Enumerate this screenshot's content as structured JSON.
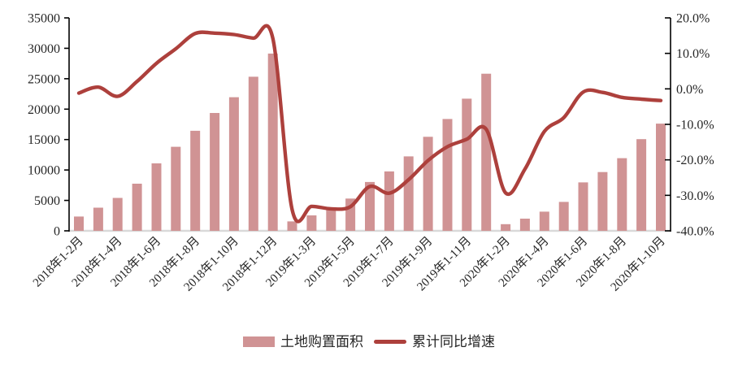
{
  "chart_data": {
    "type": "combo-bar-line",
    "title": "",
    "categories": [
      "2018年1-2月",
      "2018年1-3月",
      "2018年1-4月",
      "2018年1-5月",
      "2018年1-6月",
      "2018年1-7月",
      "2018年1-8月",
      "2018年1-9月",
      "2018年1-10月",
      "2018年1-11月",
      "2018年1-12月",
      "2019年1-2月",
      "2019年1-3月",
      "2019年1-4月",
      "2019年1-5月",
      "2019年1-6月",
      "2019年1-7月",
      "2019年1-8月",
      "2019年1-9月",
      "2019年1-10月",
      "2019年1-11月",
      "2019年1-12月",
      "2020年1-2月",
      "2020年1-3月",
      "2020年1-4月",
      "2020年1-5月",
      "2020年1-6月",
      "2020年1-7月",
      "2020年1-8月",
      "2020年1-9月",
      "2020年1-10月"
    ],
    "x_tick_labels_shown": [
      "2018年1-2月",
      "2018年1-4月",
      "2018年1-6月",
      "2018年1-8月",
      "2018年1-10月",
      "2018年1-12月",
      "2019年1-3月",
      "2019年1-5月",
      "2019年1-7月",
      "2019年1-9月",
      "2019年1-11月",
      "2020年1-2月",
      "2020年1-4月",
      "2020年1-6月",
      "2020年1-8月",
      "2020年1-10月"
    ],
    "x_label_every": 2,
    "series": [
      {
        "name": "土地购置面积",
        "type": "bar",
        "axis": "left",
        "color": "#d09394",
        "values": [
          2345,
          3802,
          5412,
          7742,
          11085,
          13818,
          16451,
          19366,
          21963,
          25326,
          29142,
          1545,
          2543,
          3582,
          5305,
          8035,
          9761,
          12236,
          15454,
          18383,
          21720,
          25822,
          1092,
          2007,
          3151,
          4752,
          7965,
          9659,
          11947,
          15063,
          17625
        ]
      },
      {
        "name": "累计同比增速",
        "type": "line",
        "axis": "right",
        "color": "#ad403c",
        "smooth": true,
        "values": [
          -1.2,
          0.5,
          -2.1,
          2.1,
          7.2,
          11.3,
          15.6,
          15.7,
          15.3,
          14.3,
          14.2,
          -34.1,
          -33.1,
          -33.8,
          -33.2,
          -27.5,
          -29.4,
          -25.6,
          -20.2,
          -16.3,
          -14.2,
          -11.4,
          -29.3,
          -22.6,
          -12.0,
          -8.1,
          -0.9,
          -1.0,
          -2.4,
          -2.9,
          -3.3
        ]
      }
    ],
    "left_axis": {
      "min": 0,
      "max": 35000,
      "step": 5000,
      "tick_labels": [
        "0",
        "5000",
        "10000",
        "15000",
        "20000",
        "25000",
        "30000",
        "35000"
      ]
    },
    "right_axis": {
      "min": -40,
      "max": 20,
      "step": 10,
      "unit": "%",
      "tick_labels": [
        "20.0%",
        "10.0%",
        "0.0%",
        "-10.0%",
        "-20.0%",
        "-30.0%",
        "-40.0%"
      ]
    },
    "grid": "baseline-only",
    "legend_position": "bottom"
  },
  "legend": {
    "items": [
      {
        "label": "土地购置面积",
        "swatch": "bar"
      },
      {
        "label": "累计同比增速",
        "swatch": "line"
      }
    ]
  },
  "colors": {
    "bar": "#d09394",
    "line": "#ad403c",
    "axis": "#000000",
    "baseline": "#d9d9d9",
    "text": "#262626",
    "background": "#ffffff"
  }
}
